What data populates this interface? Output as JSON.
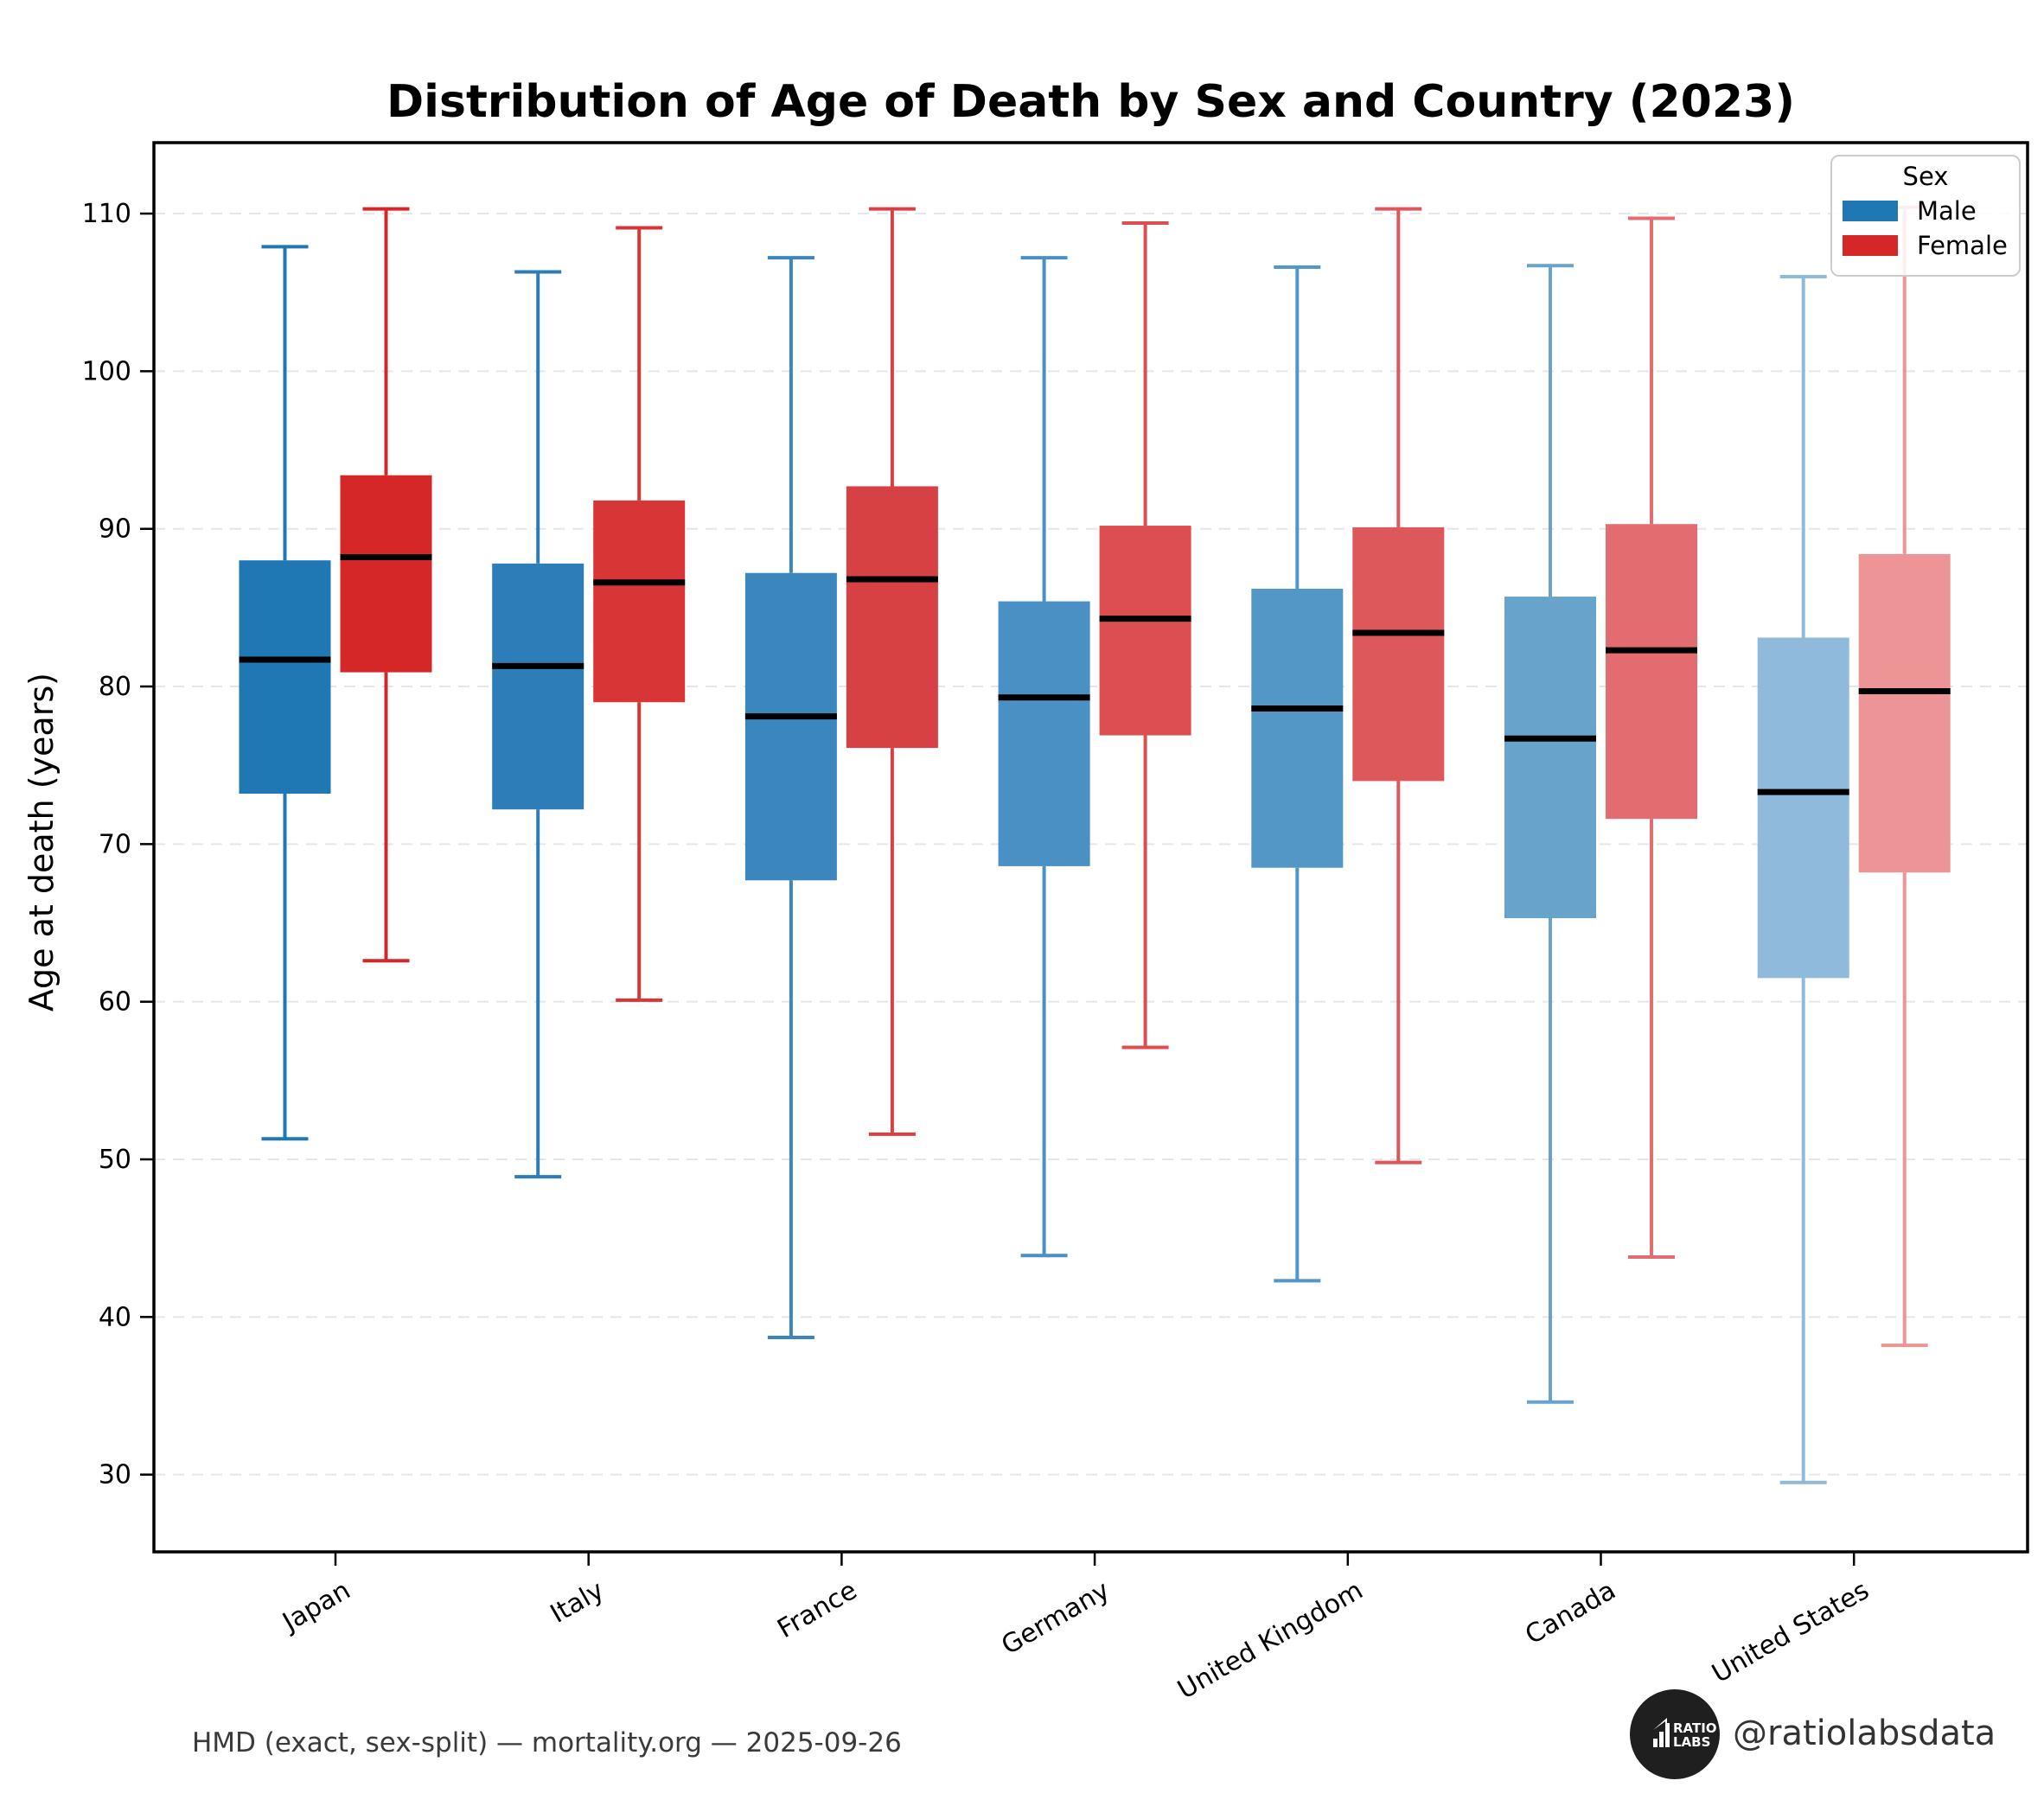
{
  "title": "Distribution of Age of Death by Sex and Country (2023)",
  "legend": {
    "title": "Sex",
    "entries": [
      {
        "label": "Male",
        "color": "#1f77b4"
      },
      {
        "label": "Female",
        "color": "#d62728"
      }
    ]
  },
  "footer": {
    "source": "HMD (exact, sex-split) — mortality.org — 2025-09-26",
    "handle": "@ratiolabsdata",
    "logo_line1": "RATIO",
    "logo_line2": "LABS"
  },
  "chart_data": {
    "type": "boxplot",
    "title": "Distribution of Age of Death by Sex and Country (2023)",
    "xlabel": "",
    "ylabel": "Age at death (years)",
    "ylim": [
      25.1,
      114.5
    ],
    "yticks": [
      30,
      40,
      50,
      60,
      70,
      80,
      90,
      100,
      110
    ],
    "grid": "horizontal-dashed",
    "grid_color": "#e6e6e6",
    "median_color": "#000000",
    "legend_position": "upper-right",
    "x_tick_rotation_deg": 30,
    "categories": [
      "Japan",
      "Italy",
      "France",
      "Germany",
      "United Kingdom",
      "Canada",
      "United States"
    ],
    "series": [
      {
        "name": "Male",
        "base_color": "#1f77b4",
        "colors": [
          "#1f77b4",
          "#2d7eb8",
          "#3a86bd",
          "#4a90c4",
          "#5397c6",
          "#68a3cc",
          "#8fbadb"
        ],
        "boxes": [
          {
            "whisker_low": 51.3,
            "q1": 73.2,
            "median": 81.7,
            "q3": 88.0,
            "whisker_high": 107.9
          },
          {
            "whisker_low": 48.9,
            "q1": 72.2,
            "median": 81.3,
            "q3": 87.8,
            "whisker_high": 106.3
          },
          {
            "whisker_low": 38.7,
            "q1": 67.7,
            "median": 78.1,
            "q3": 87.2,
            "whisker_high": 107.2
          },
          {
            "whisker_low": 43.9,
            "q1": 68.6,
            "median": 79.3,
            "q3": 85.4,
            "whisker_high": 107.2
          },
          {
            "whisker_low": 42.3,
            "q1": 68.5,
            "median": 78.6,
            "q3": 86.2,
            "whisker_high": 106.6
          },
          {
            "whisker_low": 34.6,
            "q1": 65.3,
            "median": 76.7,
            "q3": 85.7,
            "whisker_high": 106.7
          },
          {
            "whisker_low": 29.5,
            "q1": 61.5,
            "median": 73.3,
            "q3": 83.1,
            "whisker_high": 106.0
          }
        ]
      },
      {
        "name": "Female",
        "base_color": "#d62728",
        "colors": [
          "#d62728",
          "#d83536",
          "#d84143",
          "#dc4e50",
          "#dd585b",
          "#e26c70",
          "#ec9496"
        ],
        "boxes": [
          {
            "whisker_low": 62.6,
            "q1": 80.9,
            "median": 88.2,
            "q3": 93.4,
            "whisker_high": 110.3
          },
          {
            "whisker_low": 60.1,
            "q1": 79.0,
            "median": 86.6,
            "q3": 91.8,
            "whisker_high": 109.1
          },
          {
            "whisker_low": 51.6,
            "q1": 76.1,
            "median": 86.8,
            "q3": 92.7,
            "whisker_high": 110.3
          },
          {
            "whisker_low": 57.1,
            "q1": 76.9,
            "median": 84.3,
            "q3": 90.2,
            "whisker_high": 109.4
          },
          {
            "whisker_low": 49.8,
            "q1": 74.0,
            "median": 83.4,
            "q3": 90.1,
            "whisker_high": 110.3
          },
          {
            "whisker_low": 43.8,
            "q1": 71.6,
            "median": 82.3,
            "q3": 90.3,
            "whisker_high": 109.7
          },
          {
            "whisker_low": 38.2,
            "q1": 68.2,
            "median": 79.7,
            "q3": 88.4,
            "whisker_high": 110.4
          }
        ]
      }
    ]
  }
}
